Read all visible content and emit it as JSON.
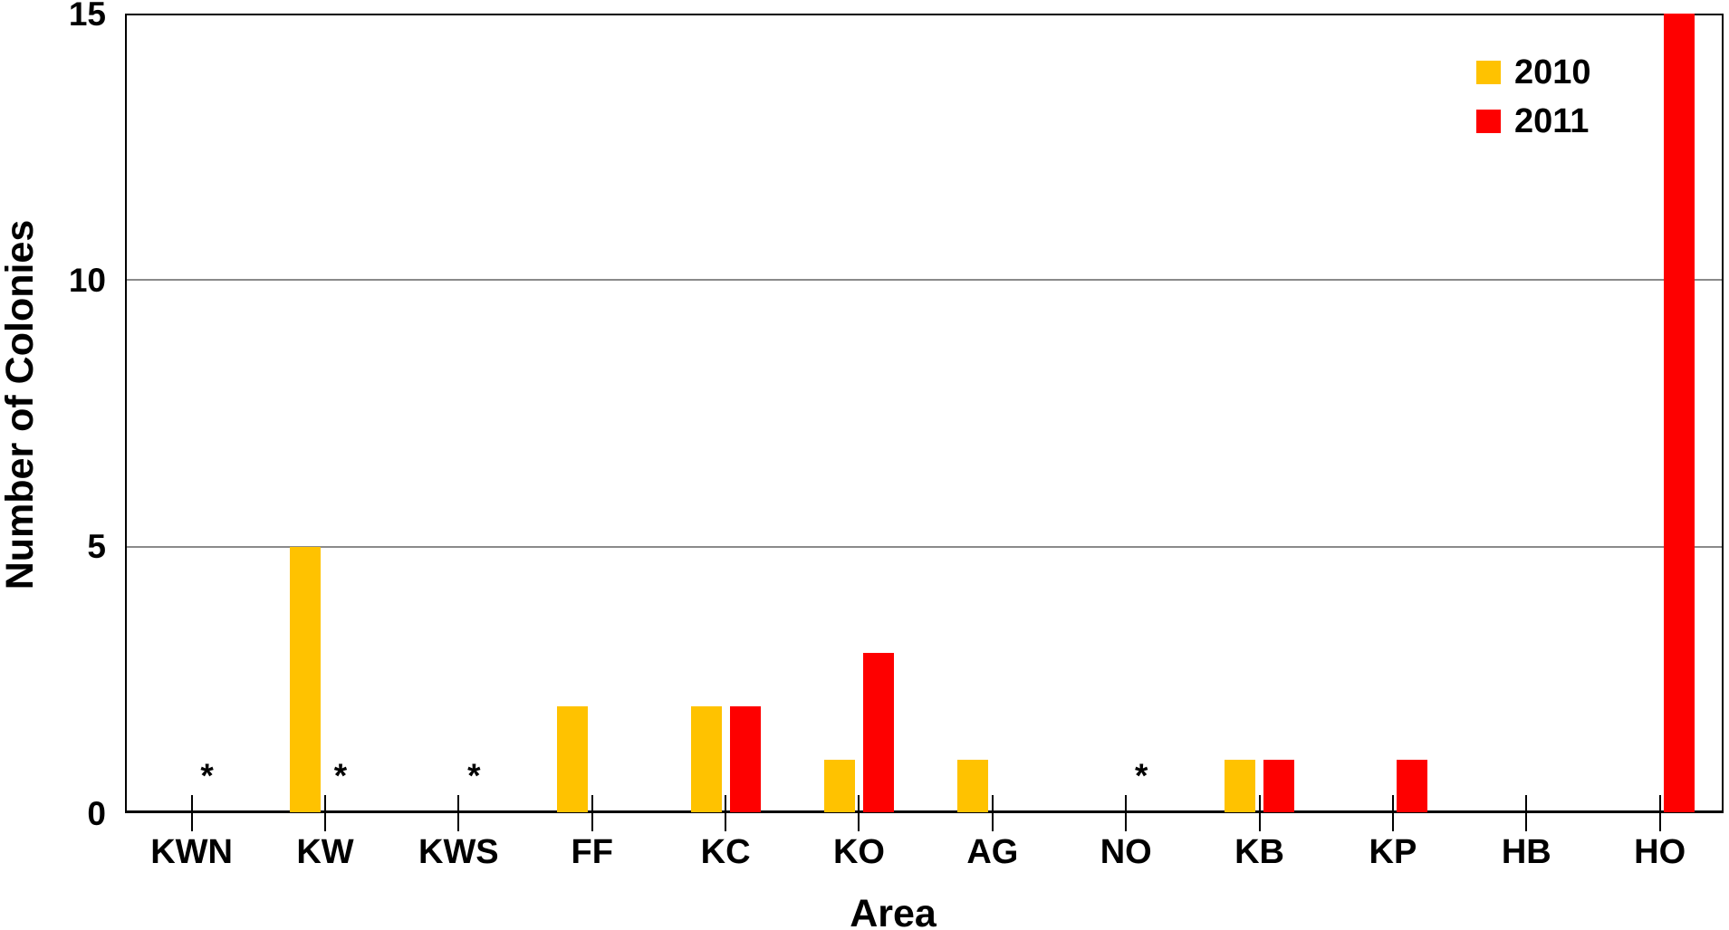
{
  "chart_data": {
    "type": "bar",
    "title": "",
    "xlabel": "Area",
    "ylabel": "Number of Colonies",
    "ylim": [
      0,
      15
    ],
    "yticks": [
      0,
      5,
      10,
      15
    ],
    "gridlines": [
      5,
      10
    ],
    "grid": "horizontal",
    "legend_position": "top-right",
    "categories": [
      "KWN",
      "KW",
      "KWS",
      "FF",
      "KC",
      "KO",
      "AG",
      "NO",
      "KB",
      "KP",
      "HB",
      "HO"
    ],
    "series": [
      {
        "name": "2010",
        "color": "#FFC200",
        "values": [
          0,
          5,
          0,
          2,
          2,
          1,
          1,
          0,
          1,
          0,
          0,
          0
        ],
        "missing_categories": []
      },
      {
        "name": "2011",
        "color": "#FE0000",
        "values": [
          null,
          null,
          null,
          0,
          2,
          3,
          0,
          null,
          1,
          1,
          0,
          15
        ],
        "missing_categories": [
          "KWN",
          "KW",
          "KWS",
          "NO"
        ]
      }
    ],
    "missing_marker_symbol": "*",
    "axis_color": "#000000",
    "gridline_color": "#8a8a8a"
  }
}
